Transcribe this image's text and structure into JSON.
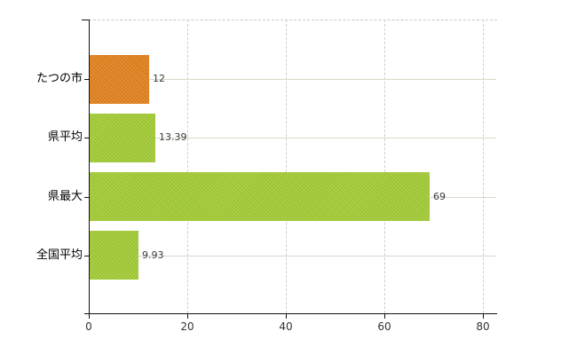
{
  "chart_data": {
    "type": "bar",
    "orientation": "horizontal",
    "title": "",
    "xlabel": "",
    "ylabel": "",
    "categories": [
      "たつの市",
      "県平均",
      "県最大",
      "全国平均"
    ],
    "values": [
      12,
      13.39,
      69,
      9.93
    ],
    "value_labels": [
      "12",
      "13.39",
      "69",
      "9.93"
    ],
    "bar_colors": [
      "#e2811e",
      "#a3cb36",
      "#a3cb36",
      "#a3cb36"
    ],
    "x_ticks": [
      0,
      20,
      40,
      60,
      80
    ],
    "x_tick_labels": [
      "0",
      "20",
      "40",
      "60",
      "80"
    ],
    "xlim": [
      0,
      82.9
    ],
    "grid": "on",
    "legend": "none"
  },
  "colors": {
    "background": "#ffffff",
    "bar_highlight": "#e2811e",
    "bar_default": "#a3cb36",
    "axis": "#111111",
    "vertical_grid": "#d2cdc9",
    "horizontal_grid": "#d5dbc9",
    "plot_border": "#ccc6c2",
    "category_text": "#000000",
    "value_text": "#3a3a3a",
    "tick_text": "#333333"
  }
}
